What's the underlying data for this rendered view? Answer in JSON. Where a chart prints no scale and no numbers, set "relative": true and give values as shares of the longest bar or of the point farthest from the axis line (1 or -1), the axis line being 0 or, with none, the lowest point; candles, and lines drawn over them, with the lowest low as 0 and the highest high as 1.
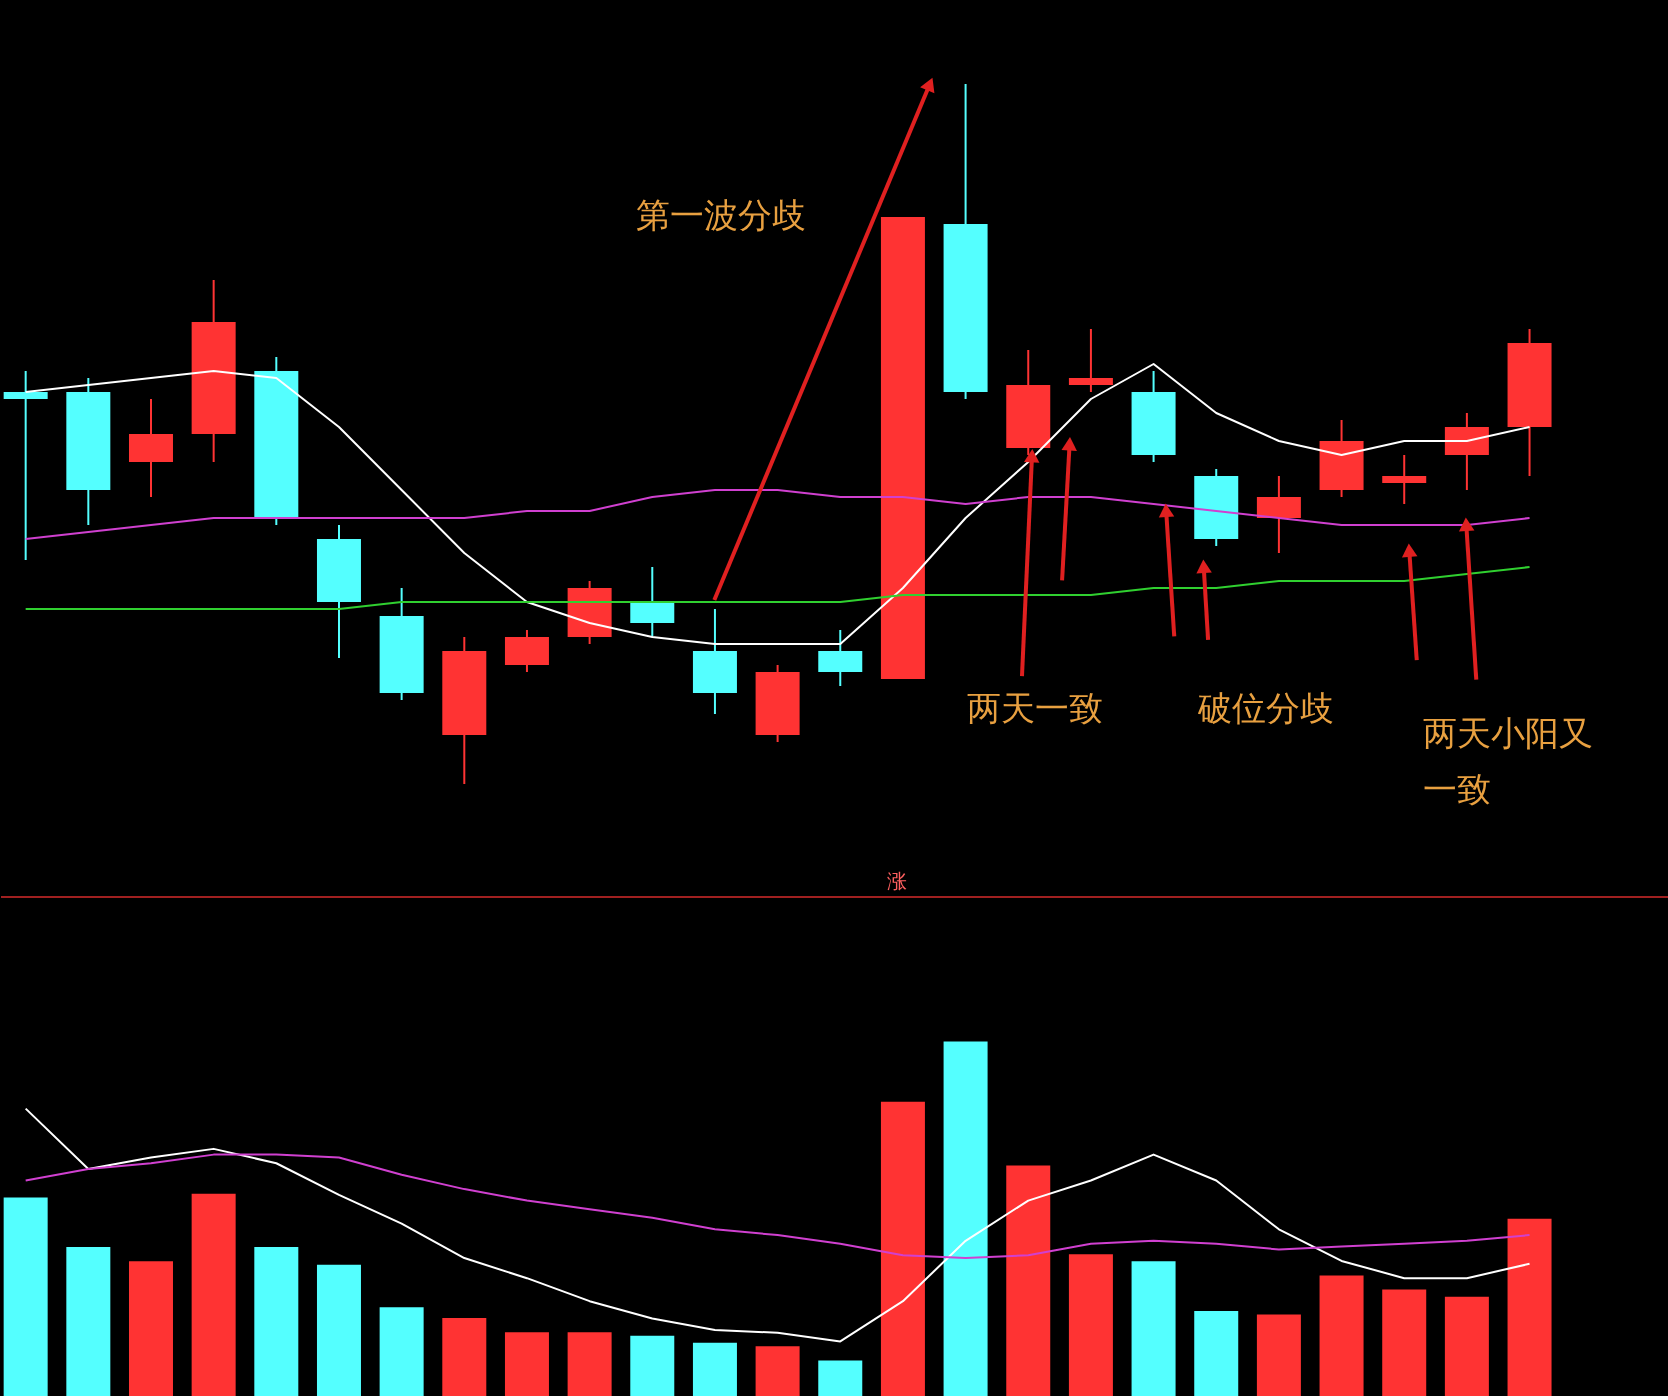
{
  "chart_data": [
    {
      "type": "candlestick",
      "relative": true,
      "categories": [
        null,
        null,
        null,
        null,
        null,
        null,
        null,
        null,
        null,
        null,
        null,
        null,
        null,
        null,
        null,
        null,
        null,
        null,
        null,
        null,
        null,
        null,
        null,
        null,
        null
      ],
      "ohlc": [
        [
          0.56,
          0.59,
          0.32,
          0.55
        ],
        [
          0.56,
          0.58,
          0.37,
          0.42
        ],
        [
          0.46,
          0.55,
          0.41,
          0.5
        ],
        [
          0.5,
          0.72,
          0.46,
          0.66
        ],
        [
          0.59,
          0.61,
          0.37,
          0.38
        ],
        [
          0.35,
          0.37,
          0.18,
          0.26
        ],
        [
          0.24,
          0.28,
          0.12,
          0.13
        ],
        [
          0.07,
          0.21,
          0,
          0.19
        ],
        [
          0.17,
          0.22,
          0.16,
          0.21
        ],
        [
          0.21,
          0.29,
          0.2,
          0.28
        ],
        [
          0.26,
          0.31,
          0.21,
          0.23
        ],
        [
          0.19,
          0.25,
          0.1,
          0.13
        ],
        [
          0.07,
          0.17,
          0.06,
          0.16
        ],
        [
          0.19,
          0.22,
          0.14,
          0.16
        ],
        [
          0.15,
          0.81,
          0.15,
          0.81
        ],
        [
          0.8,
          1,
          0.55,
          0.56
        ],
        [
          0.48,
          0.62,
          0.47,
          0.57
        ],
        [
          0.57,
          0.65,
          0.56,
          0.58
        ],
        [
          0.56,
          0.59,
          0.46,
          0.47
        ],
        [
          0.44,
          0.45,
          0.34,
          0.35
        ],
        [
          0.38,
          0.44,
          0.33,
          0.41
        ],
        [
          0.42,
          0.52,
          0.41,
          0.49
        ],
        [
          0.43,
          0.47,
          0.4,
          0.44
        ],
        [
          0.47,
          0.53,
          0.42,
          0.51
        ],
        [
          0.51,
          0.65,
          0.44,
          0.63
        ]
      ],
      "colors": [
        "#54ffff",
        "#54ffff",
        "#ff3333",
        "#ff3333",
        "#54ffff",
        "#54ffff",
        "#54ffff",
        "#ff3333",
        "#ff3333",
        "#ff3333",
        "#54ffff",
        "#54ffff",
        "#ff3333",
        "#54ffff",
        "#ff3333",
        "#54ffff",
        "#ff3333",
        "#ff3333",
        "#54ffff",
        "#54ffff",
        "#ff3333",
        "#ff3333",
        "#ff3333",
        "#ff3333",
        "#ff3333"
      ],
      "series": [
        {
          "type": "line",
          "color": "#ffffff",
          "values": [
            0.56,
            0.57,
            0.58,
            0.59,
            0.58,
            0.51,
            0.42,
            0.33,
            0.26,
            0.23,
            0.21,
            0.2,
            0.2,
            0.2,
            0.28,
            0.38,
            0.46,
            0.55,
            0.6,
            0.53,
            0.49,
            0.47,
            0.49,
            0.49,
            0.51
          ]
        },
        {
          "type": "line",
          "color": "#d040d0",
          "values": [
            0.35,
            0.36,
            0.37,
            0.38,
            0.38,
            0.38,
            0.38,
            0.38,
            0.39,
            0.39,
            0.41,
            0.42,
            0.42,
            0.41,
            0.41,
            0.4,
            0.41,
            0.41,
            0.4,
            0.39,
            0.38,
            0.37,
            0.37,
            0.37,
            0.38
          ]
        },
        {
          "type": "line",
          "color": "#30d030",
          "values": [
            0.25,
            0.25,
            0.25,
            0.25,
            0.25,
            0.25,
            0.26,
            0.26,
            0.26,
            0.26,
            0.26,
            0.26,
            0.26,
            0.26,
            0.27,
            0.27,
            0.27,
            0.27,
            0.28,
            0.28,
            0.29,
            0.29,
            0.29,
            0.3,
            0.31
          ]
        }
      ],
      "annotations": [
        "第一波分歧",
        "两天一致",
        "破位分歧",
        "两天小阳又一致",
        "涨"
      ]
    },
    {
      "type": "bar",
      "relative": true,
      "categories": [
        null,
        null,
        null,
        null,
        null,
        null,
        null,
        null,
        null,
        null,
        null,
        null,
        null,
        null,
        null,
        null,
        null,
        null,
        null,
        null,
        null,
        null,
        null,
        null,
        null
      ],
      "values": [
        0.56,
        0.42,
        0.38,
        0.57,
        0.42,
        0.37,
        0.25,
        0.22,
        0.18,
        0.18,
        0.17,
        0.15,
        0.14,
        0.1,
        0.83,
        1,
        0.65,
        0.4,
        0.38,
        0.24,
        0.23,
        0.34,
        0.3,
        0.28,
        0.5
      ],
      "colors": [
        "#54ffff",
        "#54ffff",
        "#ff3333",
        "#ff3333",
        "#54ffff",
        "#54ffff",
        "#54ffff",
        "#ff3333",
        "#ff3333",
        "#ff3333",
        "#54ffff",
        "#54ffff",
        "#ff3333",
        "#54ffff",
        "#ff3333",
        "#54ffff",
        "#ff3333",
        "#ff3333",
        "#54ffff",
        "#54ffff",
        "#ff3333",
        "#ff3333",
        "#ff3333",
        "#ff3333",
        "#ff3333"
      ]
    },
    {
      "type": "line",
      "relative": true,
      "categories": [
        null,
        null,
        null,
        null,
        null,
        null,
        null,
        null,
        null,
        null,
        null,
        null,
        null,
        null,
        null,
        null,
        null,
        null,
        null,
        null,
        null,
        null,
        null,
        null,
        null
      ],
      "series": [
        {
          "type": "line",
          "color": "#ffffff",
          "values": [
            1,
            0.79,
            0.83,
            0.86,
            0.81,
            0.7,
            0.6,
            0.48,
            0.41,
            0.33,
            0.27,
            0.23,
            0.22,
            0.19,
            0.33,
            0.54,
            0.68,
            0.75,
            0.84,
            0.75,
            0.58,
            0.47,
            0.41,
            0.41,
            0.46
          ]
        },
        {
          "type": "line",
          "color": "#d040d0",
          "values": [
            0.75,
            0.79,
            0.81,
            0.84,
            0.84,
            0.83,
            0.77,
            0.72,
            0.68,
            0.65,
            0.62,
            0.58,
            0.56,
            0.53,
            0.49,
            0.48,
            0.49,
            0.53,
            0.54,
            0.53,
            0.51,
            0.52,
            0.53,
            0.54,
            0.56
          ]
        }
      ]
    }
  ]
}
